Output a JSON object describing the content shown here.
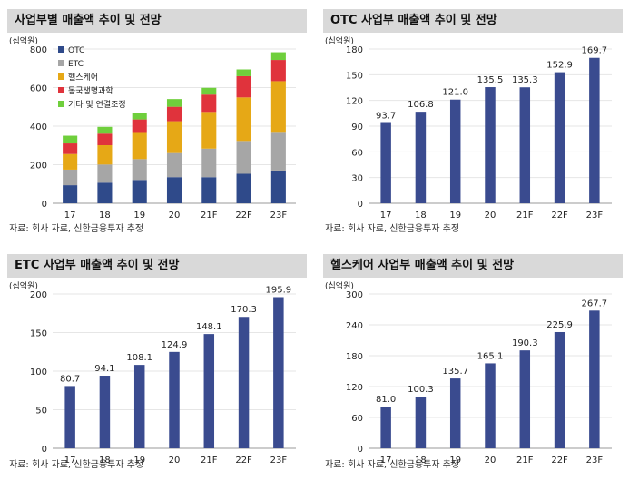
{
  "colors": {
    "bar": "#3a4b8f",
    "otc": "#2f4a8a",
    "etc": "#a6a6a6",
    "healthcare": "#e6a816",
    "biotech": "#e0333c",
    "other": "#6fcf3c",
    "gridline": "#e6e6e6",
    "title_bg": "#d9d9d9"
  },
  "panels": [
    {
      "title": "사업부별 매출액 추이 및 전망",
      "source": "자료: 회사 자료, 신한금융투자 추정"
    },
    {
      "title": "OTC 사업부 매출액 추이 및 전망",
      "source": "자료: 회사 자료, 신한금융투자 추정"
    },
    {
      "title": "ETC 사업부 매출액 추이 및 전망",
      "source": "자료: 회사 자료, 신한금융투자 추정"
    },
    {
      "title": "헬스케어 사업부 매출액 추이 및 전망",
      "source": "자료: 회사 자료, 신한금융투자 추정"
    }
  ],
  "chart_data": [
    {
      "type": "bar",
      "stacked": true,
      "title": "사업부별 매출액 추이 및 전망",
      "ylabel": "(십억원)",
      "categories": [
        "17",
        "18",
        "19",
        "20",
        "21F",
        "22F",
        "23F"
      ],
      "ylim": [
        0,
        800
      ],
      "yticks": [
        0,
        200,
        400,
        600,
        800
      ],
      "legend_position": "top-left",
      "series": [
        {
          "name": "OTC",
          "color": "#2f4a8a",
          "values": [
            93.7,
            106.8,
            121.0,
            135.5,
            135.3,
            152.9,
            169.7
          ]
        },
        {
          "name": "ETC",
          "color": "#a6a6a6",
          "values": [
            80.7,
            94.1,
            108.1,
            124.9,
            148.1,
            170.3,
            195.9
          ]
        },
        {
          "name": "헬스케어",
          "color": "#e6a816",
          "values": [
            81.0,
            100.3,
            135.7,
            165.1,
            190.3,
            225.9,
            267.7
          ]
        },
        {
          "name": "동국생명과학",
          "color": "#e0333c",
          "values": [
            55,
            60,
            70,
            75,
            90,
            110,
            110
          ]
        },
        {
          "name": "기타 및 연결조정",
          "color": "#6fcf3c",
          "values": [
            40,
            35,
            35,
            40,
            35,
            35,
            40
          ]
        }
      ]
    },
    {
      "type": "bar",
      "title": "OTC 사업부 매출액 추이 및 전망",
      "ylabel": "(십억원)",
      "categories": [
        "17",
        "18",
        "19",
        "20",
        "21F",
        "22F",
        "23F"
      ],
      "values": [
        93.7,
        106.8,
        121.0,
        135.5,
        135.3,
        152.9,
        169.7
      ],
      "labels": [
        "93.7",
        "106.8",
        "121.0",
        "135.5",
        "135.3",
        "152.9",
        "169.7"
      ],
      "ylim": [
        0,
        180
      ],
      "yticks": [
        0,
        30,
        60,
        90,
        120,
        150,
        180
      ]
    },
    {
      "type": "bar",
      "title": "ETC 사업부 매출액 추이 및 전망",
      "ylabel": "(십억원)",
      "categories": [
        "17",
        "18",
        "19",
        "20",
        "21F",
        "22F",
        "23F"
      ],
      "values": [
        80.7,
        94.1,
        108.1,
        124.9,
        148.1,
        170.3,
        195.9
      ],
      "labels": [
        "80.7",
        "94.1",
        "108.1",
        "124.9",
        "148.1",
        "170.3",
        "195.9"
      ],
      "ylim": [
        0,
        200
      ],
      "yticks": [
        0,
        50,
        100,
        150,
        200
      ]
    },
    {
      "type": "bar",
      "title": "헬스케어 사업부 매출액 추이 및 전망",
      "ylabel": "(십억원)",
      "categories": [
        "17",
        "18",
        "19",
        "20",
        "21F",
        "22F",
        "23F"
      ],
      "values": [
        81.0,
        100.3,
        135.7,
        165.1,
        190.3,
        225.9,
        267.7
      ],
      "labels": [
        "81.0",
        "100.3",
        "135.7",
        "165.1",
        "190.3",
        "225.9",
        "267.7"
      ],
      "ylim": [
        0,
        300
      ],
      "yticks": [
        0,
        60,
        120,
        180,
        240,
        300
      ]
    }
  ]
}
